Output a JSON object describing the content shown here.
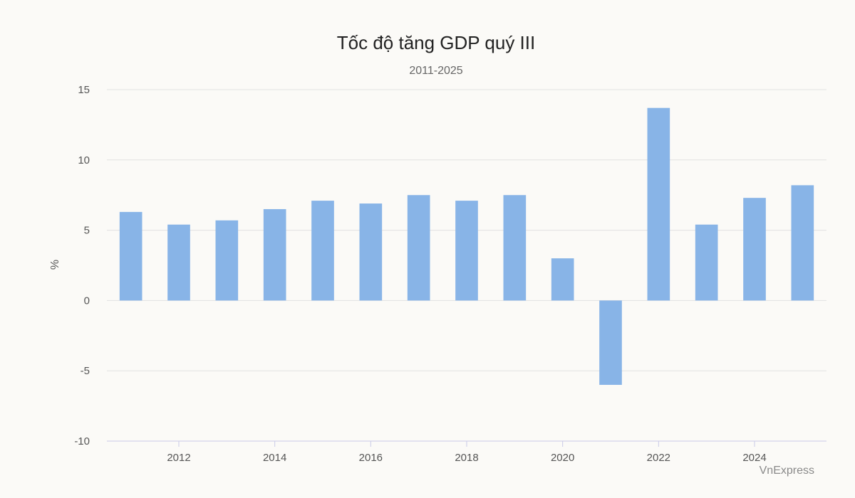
{
  "chart_data": {
    "type": "bar",
    "title": "Tốc độ tăng GDP quý III",
    "subtitle": "2011-2025",
    "ylabel": "%",
    "xlabel": "",
    "ylim": [
      -10,
      15
    ],
    "yticks": [
      15,
      10,
      5,
      0,
      -5,
      -10
    ],
    "xticks": [
      2012,
      2014,
      2016,
      2018,
      2020,
      2022,
      2024
    ],
    "grid": true,
    "legend": "none",
    "bar_color": "#88b4e7",
    "categories": [
      2011,
      2012,
      2013,
      2014,
      2015,
      2016,
      2017,
      2018,
      2019,
      2020,
      2021,
      2022,
      2023,
      2024,
      2025
    ],
    "values": [
      6.3,
      5.4,
      5.7,
      6.5,
      7.1,
      6.9,
      7.5,
      7.1,
      7.5,
      3.0,
      -6.0,
      13.7,
      5.4,
      7.3,
      8.2
    ]
  },
  "credit": "VnExpress"
}
